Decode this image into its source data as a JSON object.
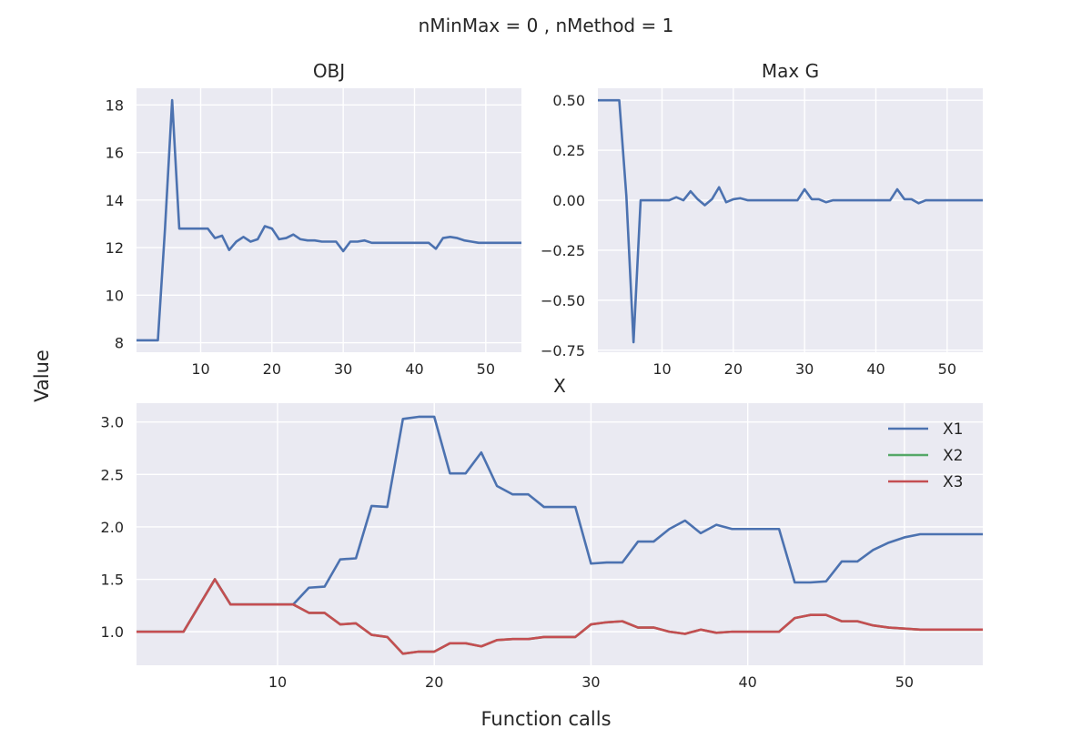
{
  "figure": {
    "suptitle": "nMinMax = 0 , nMethod = 1",
    "xlabel": "Function calls",
    "ylabel": "Value",
    "colors": {
      "background": "#EAEAF2",
      "grid": "#FFFFFF",
      "X1": "#4C72B0",
      "X2": "#55A868",
      "X3": "#C44E52"
    }
  },
  "chart_data": [
    {
      "type": "line",
      "title": "OBJ",
      "xlim": [
        1,
        55
      ],
      "ylim": [
        7.6,
        18.7
      ],
      "xticks": [
        10,
        20,
        30,
        40,
        50
      ],
      "yticks": [
        8,
        10,
        12,
        14,
        16,
        18
      ],
      "grid": true,
      "x": [
        1,
        2,
        3,
        4,
        5,
        6,
        7,
        8,
        9,
        10,
        11,
        12,
        13,
        14,
        15,
        16,
        17,
        18,
        19,
        20,
        21,
        22,
        23,
        24,
        25,
        26,
        27,
        28,
        29,
        30,
        31,
        32,
        33,
        34,
        35,
        36,
        37,
        38,
        39,
        40,
        41,
        42,
        43,
        44,
        45,
        46,
        47,
        48,
        49,
        50,
        51,
        52,
        53,
        54,
        55
      ],
      "series": [
        {
          "name": "",
          "color": "#4C72B0",
          "values": [
            8.1,
            8.1,
            8.1,
            8.1,
            12.8,
            18.2,
            12.8,
            12.8,
            12.8,
            12.8,
            12.8,
            12.4,
            12.5,
            11.9,
            12.25,
            12.45,
            12.25,
            12.35,
            12.9,
            12.8,
            12.35,
            12.4,
            12.55,
            12.35,
            12.3,
            12.3,
            12.25,
            12.25,
            12.25,
            11.85,
            12.25,
            12.25,
            12.3,
            12.2,
            12.2,
            12.2,
            12.2,
            12.2,
            12.2,
            12.2,
            12.2,
            12.2,
            11.95,
            12.4,
            12.45,
            12.4,
            12.3,
            12.25,
            12.2,
            12.2,
            12.2,
            12.2,
            12.2,
            12.2,
            12.2
          ]
        }
      ]
    },
    {
      "type": "line",
      "title": "Max G",
      "xlim": [
        1,
        55
      ],
      "ylim": [
        -0.76,
        0.56
      ],
      "xticks": [
        10,
        20,
        30,
        40,
        50
      ],
      "yticks": [
        -0.75,
        -0.5,
        -0.25,
        0.0,
        0.25,
        0.5
      ],
      "ytick_labels": [
        "−0.75",
        "−0.50",
        "−0.25",
        "0.00",
        "0.25",
        "0.50"
      ],
      "grid": true,
      "x": [
        1,
        2,
        3,
        4,
        5,
        6,
        7,
        8,
        9,
        10,
        11,
        12,
        13,
        14,
        15,
        16,
        17,
        18,
        19,
        20,
        21,
        22,
        23,
        24,
        25,
        26,
        27,
        28,
        29,
        30,
        31,
        32,
        33,
        34,
        35,
        36,
        37,
        38,
        39,
        40,
        41,
        42,
        43,
        44,
        45,
        46,
        47,
        48,
        49,
        50,
        51,
        52,
        53,
        54,
        55
      ],
      "series": [
        {
          "name": "",
          "color": "#4C72B0",
          "values": [
            0.5,
            0.5,
            0.5,
            0.5,
            0.02,
            -0.71,
            0.0,
            0.0,
            0.0,
            0.0,
            0.0,
            0.015,
            0.0,
            0.045,
            0.005,
            -0.025,
            0.005,
            0.065,
            -0.01,
            0.005,
            0.01,
            0.0,
            0.0,
            0.0,
            0.0,
            0.0,
            0.0,
            0.0,
            0.0,
            0.055,
            0.005,
            0.005,
            -0.01,
            0.0,
            0.0,
            0.0,
            0.0,
            0.0,
            0.0,
            0.0,
            0.0,
            0.0,
            0.055,
            0.005,
            0.005,
            -0.015,
            0.0,
            0.0,
            0.0,
            0.0,
            0.0,
            0.0,
            0.0,
            0.0,
            0.0
          ]
        }
      ]
    },
    {
      "type": "line",
      "title": "X",
      "xlim": [
        1,
        55
      ],
      "ylim": [
        0.68,
        3.18
      ],
      "xticks": [
        10,
        20,
        30,
        40,
        50
      ],
      "yticks": [
        1.0,
        1.5,
        2.0,
        2.5,
        3.0
      ],
      "ytick_labels": [
        "1.0",
        "1.5",
        "2.0",
        "2.5",
        "3.0"
      ],
      "grid": true,
      "legend": "top-right",
      "x": [
        1,
        2,
        3,
        4,
        5,
        6,
        7,
        8,
        9,
        10,
        11,
        12,
        13,
        14,
        15,
        16,
        17,
        18,
        19,
        20,
        21,
        22,
        23,
        24,
        25,
        26,
        27,
        28,
        29,
        30,
        31,
        32,
        33,
        34,
        35,
        36,
        37,
        38,
        39,
        40,
        41,
        42,
        43,
        44,
        45,
        46,
        47,
        48,
        49,
        50,
        51,
        52,
        53,
        54,
        55
      ],
      "series": [
        {
          "name": "X1",
          "color": "#4C72B0",
          "values": [
            1.0,
            1.0,
            1.0,
            1.0,
            1.25,
            1.5,
            1.26,
            1.26,
            1.26,
            1.26,
            1.26,
            1.42,
            1.43,
            1.69,
            1.7,
            2.2,
            2.19,
            3.03,
            3.05,
            3.05,
            2.51,
            2.51,
            2.71,
            2.39,
            2.31,
            2.31,
            2.19,
            2.19,
            2.19,
            1.65,
            1.66,
            1.66,
            1.86,
            1.86,
            1.98,
            2.06,
            1.94,
            2.02,
            1.98,
            1.98,
            1.98,
            1.98,
            1.47,
            1.47,
            1.48,
            1.67,
            1.67,
            1.78,
            1.85,
            1.9,
            1.93,
            1.93,
            1.93,
            1.93,
            1.93
          ]
        },
        {
          "name": "X2",
          "color": "#55A868",
          "values": [
            1.0,
            1.0,
            1.0,
            1.0,
            1.25,
            1.5,
            1.26,
            1.26,
            1.26,
            1.26,
            1.26,
            1.18,
            1.18,
            1.07,
            1.08,
            0.97,
            0.95,
            0.79,
            0.81,
            0.81,
            0.89,
            0.89,
            0.86,
            0.92,
            0.93,
            0.93,
            0.95,
            0.95,
            0.95,
            1.07,
            1.09,
            1.1,
            1.04,
            1.04,
            1.0,
            0.98,
            1.02,
            0.99,
            1.0,
            1.0,
            1.0,
            1.0,
            1.13,
            1.16,
            1.16,
            1.1,
            1.1,
            1.06,
            1.04,
            1.03,
            1.02,
            1.02,
            1.02,
            1.02,
            1.02
          ]
        },
        {
          "name": "X3",
          "color": "#C44E52",
          "values": [
            1.0,
            1.0,
            1.0,
            1.0,
            1.25,
            1.5,
            1.26,
            1.26,
            1.26,
            1.26,
            1.26,
            1.18,
            1.18,
            1.07,
            1.08,
            0.97,
            0.95,
            0.79,
            0.81,
            0.81,
            0.89,
            0.89,
            0.86,
            0.92,
            0.93,
            0.93,
            0.95,
            0.95,
            0.95,
            1.07,
            1.09,
            1.1,
            1.04,
            1.04,
            1.0,
            0.98,
            1.02,
            0.99,
            1.0,
            1.0,
            1.0,
            1.0,
            1.13,
            1.16,
            1.16,
            1.1,
            1.1,
            1.06,
            1.04,
            1.03,
            1.02,
            1.02,
            1.02,
            1.02,
            1.02
          ]
        }
      ]
    }
  ]
}
